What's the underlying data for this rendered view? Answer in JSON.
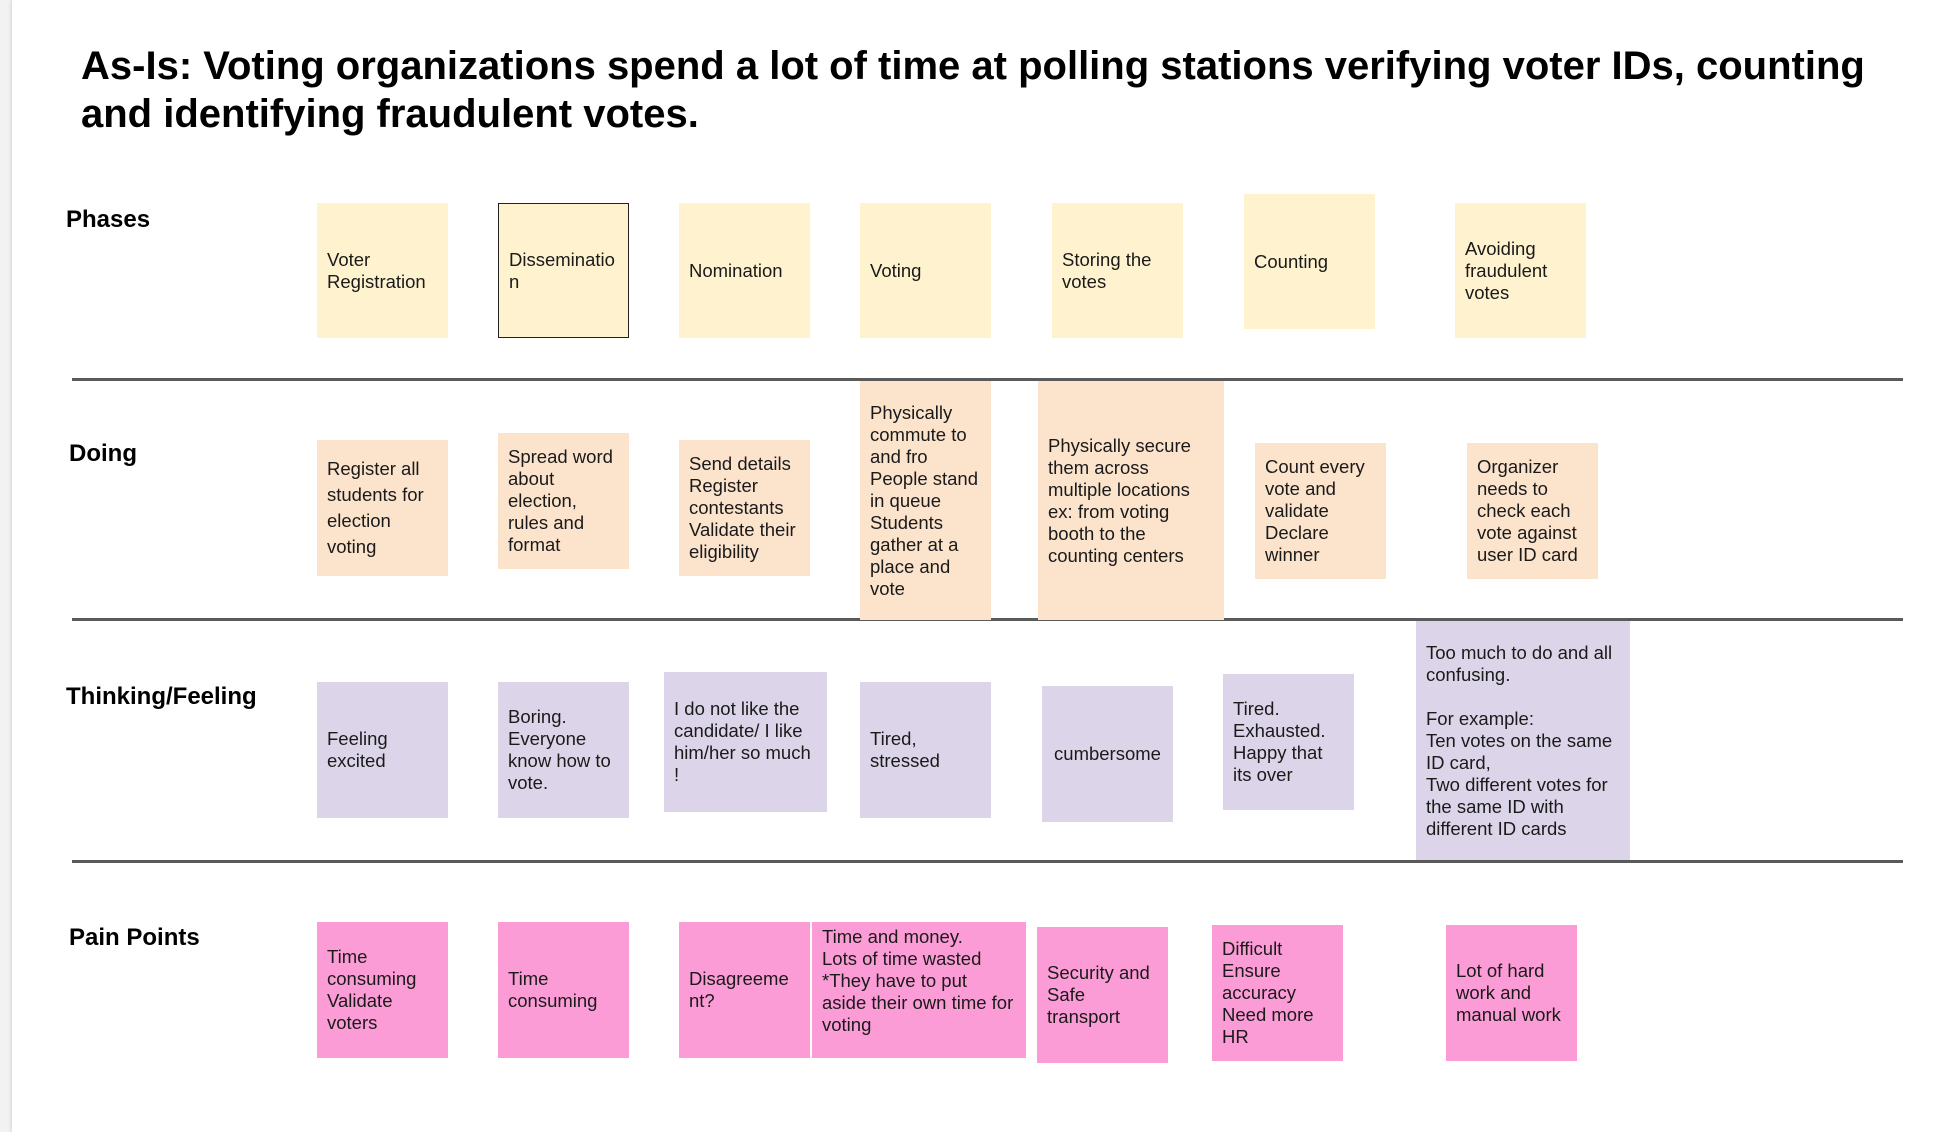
{
  "title": "As-Is: Voting organizations spend a lot of time at polling stations verifying voter IDs, counting and identifying fraudulent votes.",
  "rows": {
    "phases": "Phases",
    "doing": "Doing",
    "thinking": "Thinking/Feeling",
    "pain": "Pain Points"
  },
  "phases": [
    "Voter\nRegistration",
    "Disseminatio\nn",
    "Nomination",
    "Voting",
    "Storing the\nvotes",
    "Counting",
    "Avoiding\nfraudulent\nvotes"
  ],
  "doing": [
    "Register all\nstudents for\nelection\nvoting",
    "Spread word\nabout\nelection,\nrules and\nformat",
    "Send details\nRegister\ncontestants\nValidate their\neligibility",
    "Physically\ncommute to\nand fro\nPeople stand\nin queue\nStudents\ngather at a\nplace and\nvote",
    "Physically secure\nthem across\nmultiple locations\nex: from voting\nbooth to the\ncounting centers",
    "Count every\nvote and\nvalidate\nDeclare\nwinner",
    "Organizer\nneeds to\ncheck each\nvote against\nuser ID card"
  ],
  "thinking": [
    "Feeling\nexcited",
    "Boring.\nEveryone\nknow how to\nvote.",
    "I do not like the\ncandidate/ I like\nhim/her so much\n!",
    "Tired,\nstressed",
    "cumbersome",
    "Tired.\nExhausted.\nHappy that\nits over",
    "Too much to do and all\nconfusing.\n\nFor example:\nTen votes on the same\nID card,\nTwo different votes for\nthe same ID with\ndifferent ID cards"
  ],
  "pain": [
    "Time\nconsuming\nValidate\nvoters",
    "Time\nconsuming",
    "Disagreeme\nnt?",
    "Time and money.\nLots of time wasted\n*They have to put\naside their own time for\nvoting",
    "Security and\nSafe\ntransport",
    "Difficult\nEnsure\naccuracy\nNeed more\nHR",
    "Lot of hard\nwork and\nmanual work"
  ],
  "colors": {
    "phases": "#fff3cf",
    "doing": "#fbe3cc",
    "thinking": "#dcd5e9",
    "pain": "#fc9cd7",
    "divider": "#5a5a5a"
  }
}
